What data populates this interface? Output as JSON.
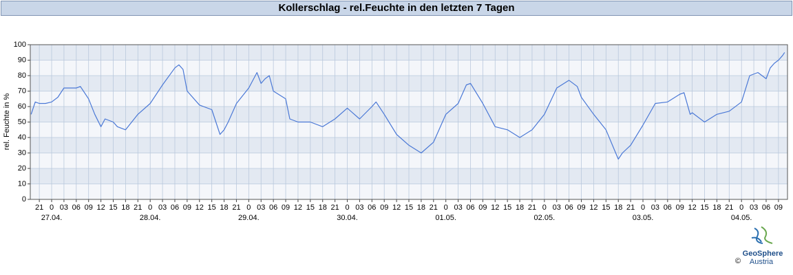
{
  "chart_data": {
    "type": "line",
    "title": "Kollerschlag - rel.Feuchte in den letzten 7 Tagen",
    "y_label": "rel. Feuchte in %",
    "logo": {
      "name": "GeoSphere",
      "sub": "Austria",
      "copyright": "©"
    },
    "x": [
      -5,
      -4,
      -3,
      -1.5,
      0,
      1.5,
      3,
      6,
      7,
      9,
      10.5,
      12,
      13,
      15,
      16,
      18,
      21,
      24,
      27,
      30,
      31,
      32,
      33,
      36,
      39,
      41,
      42,
      43,
      45,
      48,
      50,
      51,
      52,
      53,
      54,
      57,
      58,
      60,
      63,
      66,
      69,
      72,
      75,
      78,
      79,
      81,
      84,
      87,
      90,
      93,
      96,
      99,
      101,
      102,
      105,
      108,
      111,
      114,
      117,
      120,
      123,
      126,
      128,
      129,
      132,
      135,
      138,
      139,
      141,
      144,
      147,
      150,
      153,
      154,
      155.5,
      156,
      159,
      162,
      165,
      168,
      170,
      172,
      174,
      175,
      176,
      177,
      178,
      178.5
    ],
    "series": [
      {
        "name": "rel. Feuchte",
        "color": "#4a78d6",
        "values": [
          55,
          63,
          62,
          62,
          63,
          66,
          72,
          72,
          73,
          65,
          55,
          47,
          52,
          50,
          47,
          45,
          55,
          62,
          74,
          85,
          87,
          84,
          70,
          61,
          58,
          42,
          45,
          50,
          62,
          72,
          82,
          75,
          78,
          80,
          70,
          65,
          52,
          50,
          50,
          47,
          52,
          59,
          52,
          60,
          63,
          55,
          42,
          35,
          30,
          37,
          55,
          62,
          74,
          75,
          62,
          47,
          45,
          40,
          45,
          55,
          72,
          77,
          73,
          66,
          55,
          45,
          26,
          30,
          35,
          48,
          62,
          63,
          68,
          69,
          55,
          56,
          50,
          55,
          57,
          63,
          80,
          82,
          78,
          85,
          88,
          90,
          93,
          95
        ]
      }
    ],
    "xlim": [
      -5.2,
      179.2
    ],
    "ylim": [
      0,
      100
    ],
    "yticks": [
      0,
      10,
      20,
      30,
      40,
      50,
      60,
      70,
      80,
      90,
      100
    ],
    "xticks": [
      {
        "value": -3,
        "label": "21"
      },
      0,
      {
        "value": 3,
        "label": "03"
      },
      {
        "value": 6,
        "label": "06"
      },
      {
        "value": 9,
        "label": "09"
      },
      12,
      15,
      18,
      21,
      {
        "value": 24,
        "label": "0"
      },
      {
        "value": 27,
        "label": "03"
      },
      {
        "value": 30,
        "label": "06"
      },
      {
        "value": 33,
        "label": "09"
      },
      {
        "value": 36,
        "label": "12"
      },
      {
        "value": 39,
        "label": "15"
      },
      {
        "value": 42,
        "label": "18"
      },
      {
        "value": 45,
        "label": "21"
      },
      {
        "value": 48,
        "label": "0"
      },
      {
        "value": 51,
        "label": "03"
      },
      {
        "value": 54,
        "label": "06"
      },
      {
        "value": 57,
        "label": "09"
      },
      {
        "value": 60,
        "label": "12"
      },
      {
        "value": 63,
        "label": "15"
      },
      {
        "value": 66,
        "label": "18"
      },
      {
        "value": 69,
        "label": "21"
      },
      {
        "value": 72,
        "label": "0"
      },
      {
        "value": 75,
        "label": "03"
      },
      {
        "value": 78,
        "label": "06"
      },
      {
        "value": 81,
        "label": "09"
      },
      {
        "value": 84,
        "label": "12"
      },
      {
        "value": 87,
        "label": "15"
      },
      {
        "value": 90,
        "label": "18"
      },
      {
        "value": 93,
        "label": "21"
      },
      {
        "value": 96,
        "label": "0"
      },
      {
        "value": 99,
        "label": "03"
      },
      {
        "value": 102,
        "label": "06"
      },
      {
        "value": 105,
        "label": "09"
      },
      {
        "value": 108,
        "label": "12"
      },
      {
        "value": 111,
        "label": "15"
      },
      {
        "value": 114,
        "label": "18"
      },
      {
        "value": 117,
        "label": "21"
      },
      {
        "value": 120,
        "label": "0"
      },
      {
        "value": 123,
        "label": "03"
      },
      {
        "value": 126,
        "label": "06"
      },
      {
        "value": 129,
        "label": "09"
      },
      {
        "value": 132,
        "label": "12"
      },
      {
        "value": 135,
        "label": "15"
      },
      {
        "value": 138,
        "label": "18"
      },
      {
        "value": 141,
        "label": "21"
      },
      {
        "value": 144,
        "label": "0"
      },
      {
        "value": 147,
        "label": "03"
      },
      {
        "value": 150,
        "label": "06"
      },
      {
        "value": 153,
        "label": "09"
      },
      {
        "value": 156,
        "label": "12"
      },
      {
        "value": 159,
        "label": "15"
      },
      {
        "value": 162,
        "label": "18"
      },
      {
        "value": 165,
        "label": "21"
      },
      {
        "value": 168,
        "label": "0"
      },
      {
        "value": 171,
        "label": "03"
      },
      {
        "value": 174,
        "label": "06"
      },
      {
        "value": 177,
        "label": "09"
      }
    ],
    "date_labels": [
      {
        "value": 0,
        "label": "27.04."
      },
      {
        "value": 24,
        "label": "28.04."
      },
      {
        "value": 48,
        "label": "29.04."
      },
      {
        "value": 72,
        "label": "30.04."
      },
      {
        "value": 96,
        "label": "01.05."
      },
      {
        "value": 120,
        "label": "02.05."
      },
      {
        "value": 144,
        "label": "03.05."
      },
      {
        "value": 168,
        "label": "04.05."
      }
    ],
    "grid": true
  }
}
